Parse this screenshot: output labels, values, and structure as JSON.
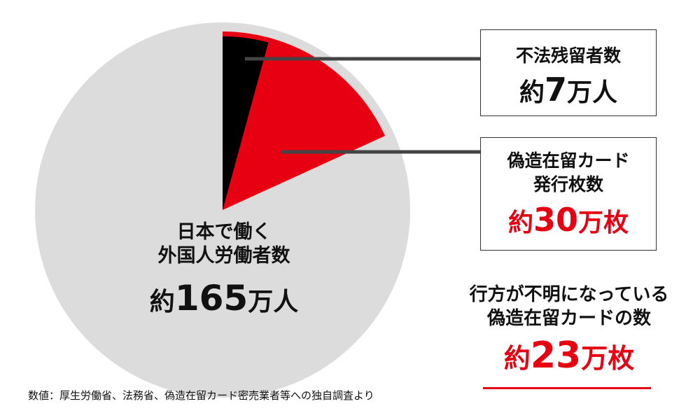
{
  "chart_data": {
    "type": "pie",
    "title": "",
    "series": [
      {
        "name": "日本で働く外国人労働者数",
        "values": [
          7,
          30,
          165
        ]
      }
    ],
    "slices": [
      {
        "label": "不法残留者数",
        "value": 7,
        "color": "#000000"
      },
      {
        "label": "偽造在留カード発行枚数",
        "value": 30,
        "color": "#e60012"
      },
      {
        "label": "日本で働く外国人労働者数",
        "value": 165,
        "color": "#dcdcdc"
      }
    ],
    "unit": "万"
  },
  "labels": {
    "total_line1": "日本で働く",
    "total_line2": "外国人労働者数",
    "total_prefix": "約",
    "total_number": "165",
    "total_unit": "万人",
    "overstay_label": "不法残留者数",
    "overstay_prefix": "約",
    "overstay_number": "7",
    "overstay_unit": "万人",
    "forged_line1": "偽造在留カード",
    "forged_line2": "発行枚数",
    "forged_prefix": "約",
    "forged_number": "30",
    "forged_unit": "万枚",
    "missing_line1": "行方が不明になっている",
    "missing_line2": "偽造在留カードの数",
    "missing_prefix": "約",
    "missing_number": "23",
    "missing_unit": "万枚"
  },
  "footnote": "数値：厚生労働省、法務省、偽造在留カード密売業者等への独自調査より",
  "colors": {
    "accent": "#e60012",
    "pie_gray": "#dcdcdc",
    "black": "#000000"
  }
}
